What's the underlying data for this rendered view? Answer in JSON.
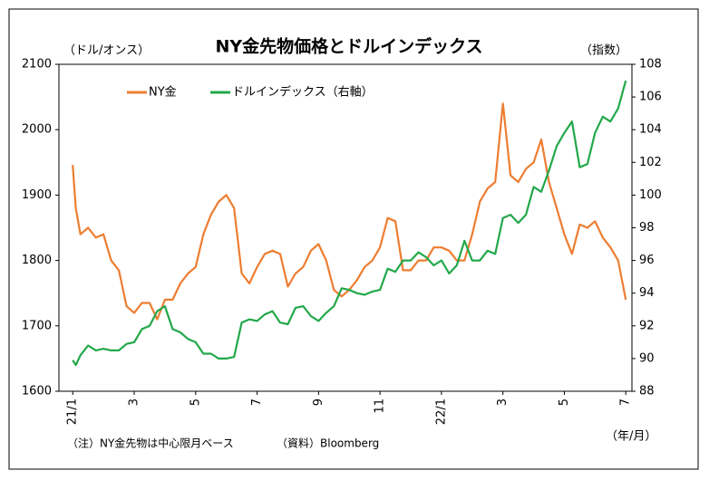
{
  "chart_data": {
    "type": "line",
    "title": "NY金先物価格とドルインデックス",
    "y_label": "（ドル/オンス）",
    "y2_label": "（指数）",
    "x_label": "（年/月）",
    "note": "（注）NY金先物は中心限月ベース",
    "source": "（資料）Bloomberg",
    "legend": "top-left",
    "x": [
      0,
      0.1,
      0.25,
      0.5,
      0.75,
      1,
      1.25,
      1.5,
      1.75,
      2,
      2.25,
      2.5,
      2.75,
      3,
      3.25,
      3.5,
      3.75,
      4,
      4.25,
      4.5,
      4.75,
      5,
      5.25,
      5.5,
      5.75,
      6,
      6.25,
      6.5,
      6.75,
      7,
      7.25,
      7.5,
      7.75,
      8,
      8.25,
      8.5,
      8.75,
      9,
      9.25,
      9.5,
      9.75,
      10,
      10.25,
      10.5,
      10.75,
      11,
      11.25,
      11.5,
      11.75,
      12,
      12.25,
      12.5,
      12.75,
      13,
      13.25,
      13.5,
      13.75,
      14,
      14.25,
      14.5,
      14.75,
      15,
      15.25,
      15.5,
      15.75,
      16,
      16.25,
      16.5,
      16.75,
      17,
      17.25,
      17.5,
      17.75,
      18
    ],
    "xlim": [
      -0.45,
      18.2
    ],
    "xticks": [
      {
        "value": 0,
        "label": "21/1"
      },
      {
        "value": 2,
        "label": "3"
      },
      {
        "value": 4,
        "label": "5"
      },
      {
        "value": 6,
        "label": "7"
      },
      {
        "value": 8,
        "label": "9"
      },
      {
        "value": 10,
        "label": "11"
      },
      {
        "value": 12,
        "label": "22/1"
      },
      {
        "value": 14,
        "label": "3"
      },
      {
        "value": 16,
        "label": "5"
      },
      {
        "value": 18,
        "label": "7"
      }
    ],
    "ylim": [
      1600,
      2100
    ],
    "yticks": [
      1600,
      1700,
      1800,
      1900,
      2000,
      2100
    ],
    "y2lim": [
      88,
      108
    ],
    "y2ticks": [
      88,
      90,
      92,
      94,
      96,
      98,
      100,
      102,
      104,
      106,
      108
    ],
    "series": [
      {
        "name": "NY金",
        "color": "#ed7d31",
        "values": [
          1946,
          1880,
          1840,
          1850,
          1835,
          1840,
          1800,
          1785,
          1730,
          1720,
          1735,
          1735,
          1710,
          1740,
          1740,
          1765,
          1780,
          1790,
          1840,
          1870,
          1890,
          1900,
          1880,
          1780,
          1765,
          1790,
          1810,
          1815,
          1810,
          1760,
          1780,
          1790,
          1815,
          1825,
          1800,
          1755,
          1745,
          1755,
          1770,
          1790,
          1800,
          1820,
          1865,
          1860,
          1785,
          1785,
          1800,
          1800,
          1820,
          1820,
          1815,
          1800,
          1800,
          1840,
          1890,
          1910,
          1920,
          2040,
          1930,
          1920,
          1940,
          1950,
          1985,
          1920,
          1880,
          1840,
          1810,
          1855,
          1850,
          1860,
          1835,
          1820,
          1800,
          1740
        ]
      },
      {
        "name": "ドルインデックス（右軸）",
        "color": "#22a84a",
        "axis": "y2",
        "values": [
          89.9,
          89.6,
          90.2,
          90.8,
          90.5,
          90.6,
          90.5,
          90.5,
          90.9,
          91.0,
          91.8,
          92.0,
          92.9,
          93.2,
          91.8,
          91.6,
          91.2,
          91.0,
          90.3,
          90.3,
          90.0,
          90.0,
          90.1,
          92.2,
          92.4,
          92.3,
          92.7,
          92.9,
          92.2,
          92.1,
          93.1,
          93.2,
          92.6,
          92.3,
          92.8,
          93.2,
          94.3,
          94.2,
          94.0,
          93.9,
          94.1,
          94.2,
          95.5,
          95.3,
          96.0,
          96.0,
          96.5,
          96.2,
          95.7,
          96.0,
          95.2,
          95.7,
          97.2,
          96.0,
          96.0,
          96.6,
          96.4,
          98.6,
          98.8,
          98.3,
          98.8,
          100.5,
          100.2,
          101.5,
          103.0,
          103.8,
          104.5,
          101.7,
          101.9,
          103.8,
          104.8,
          104.5,
          105.3,
          107.0
        ]
      }
    ]
  }
}
